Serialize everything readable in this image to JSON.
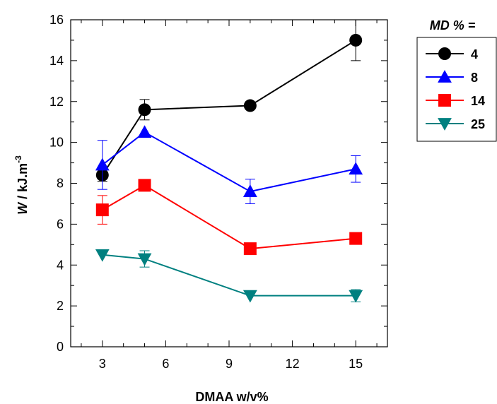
{
  "chart_data": {
    "type": "line",
    "xlabel": "DMAA w/v%",
    "ylabel_main": "W",
    "ylabel_rest": " / kJ.m",
    "ylabel_sup": "-3",
    "xlim": [
      1.5,
      16.5
    ],
    "ylim": [
      0,
      16
    ],
    "xticks": [
      3,
      6,
      9,
      12,
      15
    ],
    "yticks": [
      0,
      2,
      4,
      6,
      8,
      10,
      12,
      14,
      16
    ],
    "grid": false,
    "legend": {
      "title": "MD % =",
      "placement": "right, outside plot"
    },
    "series": [
      {
        "name": "4",
        "marker": "circle",
        "color": "#000000",
        "x": [
          3,
          5,
          10,
          15
        ],
        "y": [
          8.4,
          11.6,
          11.8,
          15.0
        ],
        "err": [
          0.3,
          0.5,
          0.0,
          1.0
        ]
      },
      {
        "name": "8",
        "marker": "triangle-up",
        "color": "#0000ff",
        "x": [
          3,
          5,
          10,
          15
        ],
        "y": [
          8.9,
          10.5,
          7.6,
          8.7
        ],
        "err": [
          1.2,
          0.0,
          0.6,
          0.65
        ]
      },
      {
        "name": "14",
        "marker": "square",
        "color": "#ff0000",
        "x": [
          3,
          5,
          10,
          15
        ],
        "y": [
          6.7,
          7.9,
          4.8,
          5.3
        ],
        "err": [
          0.7,
          0.0,
          0.0,
          0.0
        ]
      },
      {
        "name": "25",
        "marker": "triangle-down",
        "color": "#008080",
        "x": [
          3,
          5,
          10,
          15
        ],
        "y": [
          4.5,
          4.3,
          2.5,
          2.5
        ],
        "err": [
          0.0,
          0.4,
          0.0,
          0.3
        ]
      }
    ]
  }
}
